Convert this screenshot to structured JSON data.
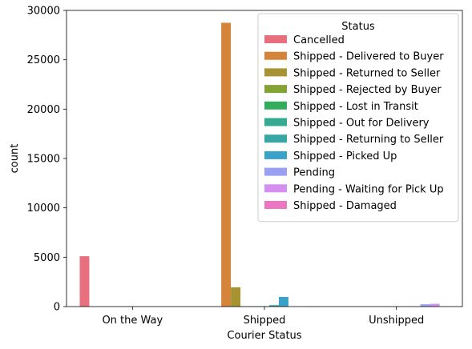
{
  "chart_data": {
    "type": "bar",
    "xlabel": "Courier Status",
    "ylabel": "count",
    "categories": [
      "On the Way",
      "Shipped",
      "Unshipped"
    ],
    "ylim": [
      0,
      30000
    ],
    "yticks": [
      "0",
      "5000",
      "10000",
      "15000",
      "20000",
      "25000",
      "30000"
    ],
    "yticks_values": [
      0,
      5000,
      10000,
      15000,
      20000,
      25000,
      30000
    ],
    "legend_title": "Status",
    "legend_position": "top-right",
    "grid": false,
    "series": [
      {
        "name": "Cancelled",
        "color": "#e8707e",
        "values": [
          5100,
          0,
          0
        ]
      },
      {
        "name": "Shipped - Delivered to Buyer",
        "color": "#d5843b",
        "values": [
          0,
          28750,
          0
        ]
      },
      {
        "name": "Shipped - Returned to Seller",
        "color": "#a89333",
        "values": [
          0,
          1950,
          0
        ]
      },
      {
        "name": "Shipped - Rejected by Buyer",
        "color": "#84a335",
        "values": [
          0,
          10,
          0
        ]
      },
      {
        "name": "Shipped - Lost in Transit",
        "color": "#33ad5b",
        "values": [
          0,
          5,
          0
        ]
      },
      {
        "name": "Shipped - Out for Delivery",
        "color": "#35aa90",
        "values": [
          0,
          35,
          0
        ]
      },
      {
        "name": "Shipped - Returning to Seller",
        "color": "#38a6a5",
        "values": [
          0,
          145,
          0
        ]
      },
      {
        "name": "Shipped - Picked Up",
        "color": "#3aa1c9",
        "values": [
          0,
          975,
          0
        ]
      },
      {
        "name": "Pending",
        "color": "#99a0f1",
        "values": [
          0,
          0,
          230
        ]
      },
      {
        "name": "Pending - Waiting for Pick Up",
        "color": "#d48ff0",
        "values": [
          0,
          0,
          280
        ]
      },
      {
        "name": "Shipped - Damaged",
        "color": "#eb77c2",
        "values": [
          0,
          1,
          0
        ]
      }
    ]
  }
}
